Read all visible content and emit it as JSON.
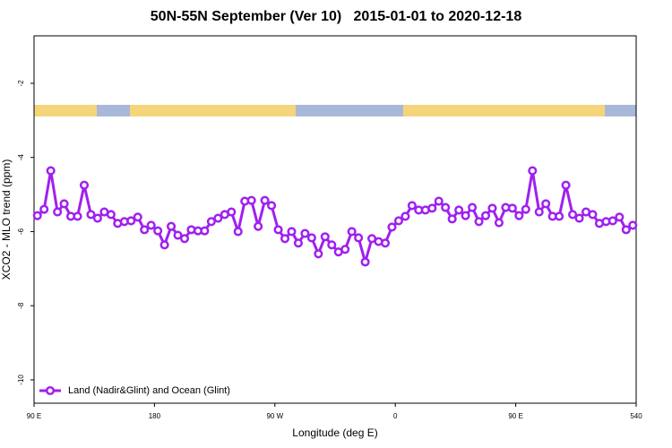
{
  "chart_data": {
    "type": "line",
    "title": "50N-55N September (Ver 10)   2015-01-01 to 2020-12-18",
    "xlabel": "Longitude (deg E)",
    "ylabel": "XCO2 - MLO trend (ppm)",
    "x": [
      92.5,
      97.5,
      102.5,
      107.5,
      112.5,
      117.5,
      122.5,
      127.5,
      132.5,
      137.5,
      142.5,
      147.5,
      152.5,
      157.5,
      162.5,
      167.5,
      172.5,
      177.5,
      182.5,
      187.5,
      192.5,
      197.5,
      202.5,
      207.5,
      212.5,
      217.5,
      222.5,
      227.5,
      232.5,
      237.5,
      242.5,
      247.5,
      252.5,
      257.5,
      262.5,
      267.5,
      272.5,
      277.5,
      282.5,
      287.5,
      292.5,
      297.5,
      302.5,
      307.5,
      312.5,
      317.5,
      322.5,
      327.5,
      332.5,
      337.5,
      342.5,
      347.5,
      352.5,
      357.5,
      362.5,
      367.5,
      372.5,
      377.5,
      382.5,
      387.5,
      392.5,
      397.5,
      402.5,
      407.5,
      412.5,
      417.5,
      422.5,
      427.5,
      432.5,
      437.5,
      442.5,
      447.5,
      452.5,
      457.5,
      462.5,
      467.5,
      472.5,
      477.5,
      482.5,
      487.5,
      492.5,
      497.5,
      502.5,
      507.5,
      512.5,
      517.5,
      522.5,
      527.5,
      532.5,
      537.5
    ],
    "series": [
      {
        "name": "Land (Nadir&Glint) and Ocean (Glint)",
        "color": "#a020f0",
        "values": [
          -5.57,
          -5.4,
          -4.36,
          -5.47,
          -5.25,
          -5.59,
          -5.59,
          -4.75,
          -5.54,
          -5.64,
          -5.47,
          -5.54,
          -5.78,
          -5.73,
          -5.71,
          -5.61,
          -5.95,
          -5.83,
          -5.98,
          -6.36,
          -5.86,
          -6.1,
          -6.19,
          -5.95,
          -5.98,
          -5.98,
          -5.73,
          -5.64,
          -5.54,
          -5.47,
          -6.0,
          -5.18,
          -5.16,
          -5.86,
          -5.16,
          -5.3,
          -5.95,
          -6.19,
          -6.0,
          -6.31,
          -6.05,
          -6.17,
          -6.6,
          -6.14,
          -6.36,
          -6.55,
          -6.48,
          -6.0,
          -6.17,
          -6.82,
          -6.19,
          -6.27,
          -6.31,
          -5.88,
          -5.71,
          -5.59,
          -5.3,
          -5.42,
          -5.42,
          -5.37,
          -5.18,
          -5.35,
          -5.66,
          -5.42,
          -5.57,
          -5.35,
          -5.73,
          -5.57,
          -5.37,
          -5.76,
          -5.35,
          -5.37,
          -5.57,
          -5.4,
          -4.36,
          -5.47,
          -5.25,
          -5.59,
          -5.59,
          -4.75,
          -5.54,
          -5.64,
          -5.47,
          -5.54,
          -5.78,
          -5.73,
          -5.71,
          -5.61,
          -5.95,
          -5.83
        ]
      }
    ],
    "xlim": [
      90,
      540
    ],
    "xticks": [
      {
        "value": 90,
        "label": "90 E"
      },
      180,
      {
        "value": 270,
        "label": "90 W"
      },
      {
        "value": 360,
        "label": "0"
      },
      {
        "value": 450,
        "label": "90 E"
      },
      540
    ],
    "ylim": [
      -10.63,
      -0.72
    ],
    "yticks": [
      -2,
      -4,
      -6,
      -8,
      -10
    ],
    "legend": "bottom-left"
  }
}
